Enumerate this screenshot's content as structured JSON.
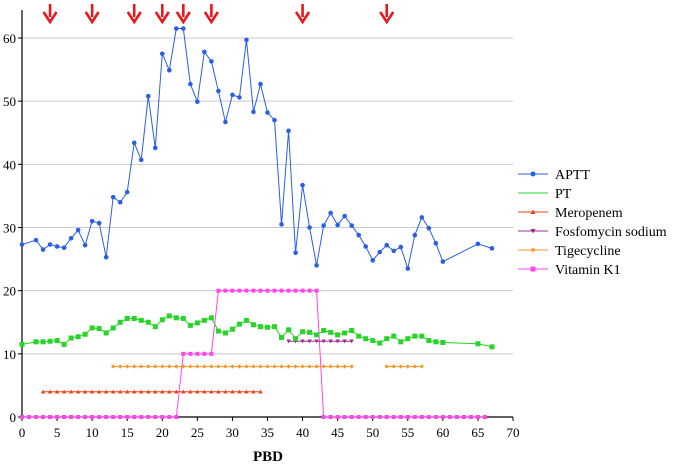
{
  "chart_data": {
    "type": "line",
    "xlabel": "PBD",
    "ylabel": "",
    "title": "",
    "xlim": [
      0,
      70
    ],
    "ylim": [
      0,
      65
    ],
    "x_ticks": [
      "0",
      "5",
      "10",
      "15",
      "20",
      "25",
      "30",
      "35",
      "40",
      "45",
      "50",
      "55",
      "60",
      "65",
      "70"
    ],
    "y_ticks": [
      "0",
      "10",
      "20",
      "30",
      "40",
      "50",
      "60"
    ],
    "grid": "horizontal",
    "legend_position": "right",
    "arrow_marker_color": "#e8191c",
    "arrow_markers_x": [
      4,
      10,
      16,
      20,
      23,
      27,
      40,
      52
    ],
    "series": [
      {
        "name": "APTT",
        "color": "#2b5ee6",
        "marker": "circle",
        "x": [
          0,
          2,
          3,
          4,
          5,
          6,
          7,
          8,
          9,
          10,
          11,
          12,
          13,
          14,
          15,
          16,
          17,
          18,
          19,
          20,
          21,
          22,
          23,
          24,
          25,
          26,
          27,
          28,
          29,
          30,
          31,
          32,
          33,
          34,
          35,
          36,
          37,
          38,
          39,
          40,
          41,
          42,
          43,
          44,
          45,
          46,
          47,
          48,
          49,
          50,
          51,
          52,
          53,
          54,
          55,
          56,
          57,
          58,
          59,
          60,
          65,
          67
        ],
        "y": [
          27.3,
          28,
          26.5,
          27.3,
          27,
          26.8,
          28.3,
          29.6,
          27.2,
          31,
          30.7,
          25.3,
          34.8,
          34,
          35.6,
          43.4,
          40.7,
          50.8,
          42.6,
          57.5,
          54.9,
          61.5,
          61.5,
          52.7,
          49.9,
          57.8,
          56.3,
          51.6,
          46.7,
          51,
          50.6,
          59.7,
          48.3,
          52.7,
          48.2,
          47,
          30.5,
          45.3,
          26,
          36.7,
          30,
          24,
          30.3,
          32.3,
          30.4,
          31.8,
          30.3,
          28.8,
          27,
          24.8,
          26.1,
          27.2,
          26.3,
          26.9,
          23.5,
          28.8,
          31.6,
          29.9,
          27.5,
          24.6,
          27.4,
          26.7
        ]
      },
      {
        "name": "PT",
        "color": "#28d428",
        "marker": "square",
        "x": [
          0,
          2,
          3,
          4,
          5,
          6,
          7,
          8,
          9,
          10,
          11,
          12,
          13,
          14,
          15,
          16,
          17,
          18,
          19,
          20,
          21,
          22,
          23,
          24,
          25,
          26,
          27,
          28,
          29,
          30,
          31,
          32,
          33,
          34,
          35,
          36,
          37,
          38,
          39,
          40,
          41,
          42,
          43,
          44,
          45,
          46,
          47,
          48,
          49,
          50,
          51,
          52,
          53,
          54,
          55,
          56,
          57,
          58,
          59,
          60,
          65,
          67
        ],
        "y": [
          11.5,
          11.9,
          11.9,
          12,
          12.1,
          11.5,
          12.5,
          12.7,
          13.1,
          14.1,
          14,
          13.3,
          14.1,
          15,
          15.6,
          15.6,
          15.3,
          15,
          14.3,
          15.4,
          16,
          15.7,
          15.6,
          14.5,
          14.9,
          15.3,
          15.7,
          13.6,
          13.3,
          13.9,
          14.7,
          15.3,
          14.6,
          14.3,
          14.2,
          14.3,
          12.6,
          13.8,
          12.4,
          13.5,
          13.4,
          13,
          13.7,
          13.4,
          13,
          13.3,
          13.7,
          12.8,
          12.4,
          12.1,
          11.7,
          12.4,
          12.8,
          11.9,
          12.4,
          12.8,
          12.8,
          12.1,
          11.9,
          11.8,
          11.6,
          11.1
        ]
      },
      {
        "name": "Meropenem",
        "color": "#f0431b",
        "marker": "triangle",
        "segments": [
          {
            "x": [
              3,
              34
            ],
            "y": 4
          }
        ]
      },
      {
        "name": "Fosfomycin sodium",
        "color": "#9b2f8f",
        "marker": "triangle-down",
        "segments": [
          {
            "x": [
              38,
              47
            ],
            "y": 12
          }
        ]
      },
      {
        "name": "Tigecycline",
        "color": "#f8982a",
        "marker": "diamond",
        "segments": [
          {
            "x": [
              13,
              47
            ],
            "y": 8
          },
          {
            "x": [
              52,
              57
            ],
            "y": 8
          }
        ]
      },
      {
        "name": "Vitamin K1",
        "color": "#ff45e8",
        "marker": "square",
        "x": [
          0,
          22,
          23,
          27,
          28,
          42,
          43,
          66
        ],
        "y": [
          0,
          0,
          10,
          10,
          20,
          20,
          0,
          0
        ]
      }
    ]
  }
}
